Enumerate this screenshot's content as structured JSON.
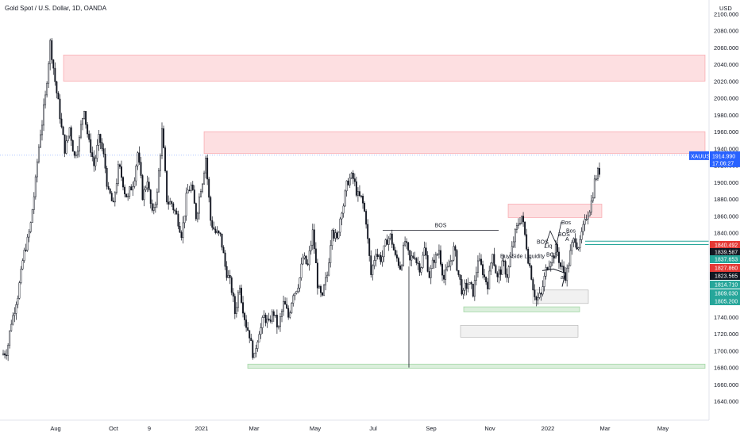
{
  "header": {
    "title": "Gold Spot / U.S. Dollar, 1D, OANDA"
  },
  "chart_data": {
    "type": "candlestick",
    "title": "Gold Spot / U.S. Dollar, 1D, OANDA",
    "currency_label": "USD",
    "ylim": [
      1625,
      2105
    ],
    "y_ticks": [
      1640,
      1660,
      1680,
      1700,
      1720,
      1740,
      1760,
      1780,
      1800,
      1820,
      1840,
      1860,
      1880,
      1900,
      1920,
      1940,
      1960,
      1980,
      2000,
      2020,
      2040,
      2060,
      2080,
      2100
    ],
    "x_ticks": [
      "Aug",
      "Oct",
      "9",
      "2021",
      "Mar",
      "May",
      "Jul",
      "Sep",
      "Nov",
      "2022",
      "Mar",
      "May"
    ],
    "symbol_badge": "XAUUSD",
    "current_price": "1914.990",
    "countdown": "17:06:27",
    "price_badges": [
      {
        "value": "1840.492",
        "color": "#e53935"
      },
      {
        "value": "1839.587",
        "color": "#131722"
      },
      {
        "value": "1837.653",
        "color": "#26a69a"
      },
      {
        "value": "1827.860",
        "color": "#e53935"
      },
      {
        "value": "1823.565",
        "color": "#131722"
      },
      {
        "value": "1814.710",
        "color": "#26a69a"
      },
      {
        "value": "1809.030",
        "color": "#26a69a"
      },
      {
        "value": "1805.200",
        "color": "#26a69a"
      }
    ],
    "annotations": [
      "BOS",
      "Buy-Side Liquidity",
      "BOS",
      "BOS",
      "Liq",
      "Bos",
      "Bos",
      "BOS",
      "a",
      "A"
    ],
    "supply_zones": [
      {
        "low": 2020,
        "high": 2051
      },
      {
        "low": 1934,
        "high": 1960
      },
      {
        "low": 1858,
        "high": 1874
      }
    ],
    "demand_zones": [
      {
        "low": 1679,
        "high": 1684
      },
      {
        "low": 1746,
        "high": 1752
      }
    ],
    "structure_lines": [
      {
        "label": "BOS",
        "price": 1843
      }
    ],
    "series": [
      {
        "values": [
          1700,
          1735,
          1760,
          1790,
          1825,
          1850,
          1900,
          1960,
          2000,
          2065,
          2020,
          1980,
          1940,
          1965,
          1930,
          1950,
          1990,
          1945,
          1920,
          1950,
          1930,
          1885,
          1870,
          1915,
          1900,
          1880,
          1900,
          1935,
          1885,
          1905,
          1860,
          1885,
          1960,
          1880,
          1875,
          1860,
          1840,
          1880,
          1895,
          1860,
          1895,
          1930,
          1855,
          1840,
          1835,
          1800,
          1780,
          1745,
          1780,
          1740,
          1720,
          1690,
          1725,
          1740,
          1730,
          1745,
          1725,
          1755,
          1740,
          1770,
          1780,
          1810,
          1800,
          1840,
          1780,
          1760,
          1790,
          1850,
          1830,
          1870,
          1895,
          1905,
          1890,
          1880,
          1855,
          1790,
          1820,
          1810,
          1825,
          1835,
          1810,
          1800,
          1830,
          1805,
          1815,
          1800,
          1820,
          1790,
          1810,
          1820,
          1785,
          1800,
          1820,
          1790,
          1765,
          1780,
          1770,
          1810,
          1795,
          1780,
          1820,
          1785,
          1800,
          1790,
          1820,
          1845,
          1860,
          1825,
          1790,
          1760,
          1765,
          1795,
          1810,
          1820,
          1800,
          1790,
          1815,
          1835,
          1825,
          1850,
          1870,
          1900,
          1914
        ]
      }
    ]
  }
}
